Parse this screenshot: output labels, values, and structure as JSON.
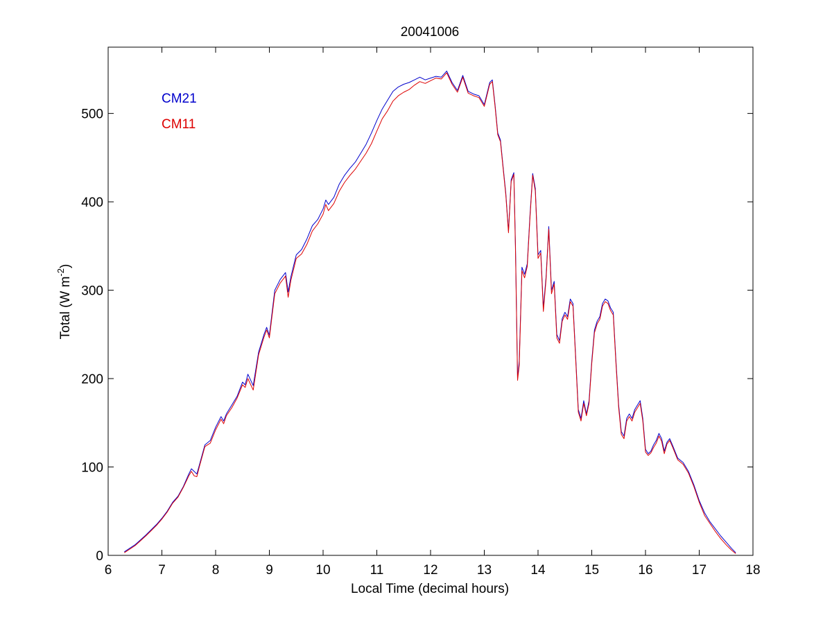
{
  "chart_data": {
    "type": "line",
    "title": "20041006",
    "xlabel": "Local Time (decimal hours)",
    "ylabel": {
      "main": "Total (W m",
      "superscript": "-2",
      "close": ")"
    },
    "xlim": [
      6,
      18
    ],
    "ylim": [
      0,
      575
    ],
    "xticks": [
      6,
      7,
      8,
      9,
      10,
      11,
      12,
      13,
      14,
      15,
      16,
      17,
      18
    ],
    "yticks": [
      0,
      100,
      200,
      300,
      400,
      500
    ],
    "grid": false,
    "legend_position": "top-left",
    "series": [
      {
        "name": "CM21",
        "color": "#0000cc",
        "points": [
          [
            6.3,
            4
          ],
          [
            6.5,
            12
          ],
          [
            6.7,
            23
          ],
          [
            6.9,
            35
          ],
          [
            7.0,
            42
          ],
          [
            7.1,
            50
          ],
          [
            7.2,
            60
          ],
          [
            7.3,
            67
          ],
          [
            7.4,
            78
          ],
          [
            7.5,
            92
          ],
          [
            7.55,
            98
          ],
          [
            7.6,
            95
          ],
          [
            7.65,
            92
          ],
          [
            7.7,
            103
          ],
          [
            7.8,
            125
          ],
          [
            7.9,
            130
          ],
          [
            8.0,
            145
          ],
          [
            8.1,
            157
          ],
          [
            8.15,
            152
          ],
          [
            8.2,
            160
          ],
          [
            8.3,
            170
          ],
          [
            8.4,
            180
          ],
          [
            8.5,
            196
          ],
          [
            8.55,
            193
          ],
          [
            8.6,
            205
          ],
          [
            8.7,
            192
          ],
          [
            8.8,
            230
          ],
          [
            8.9,
            250
          ],
          [
            8.95,
            258
          ],
          [
            9.0,
            249
          ],
          [
            9.1,
            300
          ],
          [
            9.2,
            312
          ],
          [
            9.3,
            320
          ],
          [
            9.35,
            298
          ],
          [
            9.4,
            315
          ],
          [
            9.5,
            340
          ],
          [
            9.6,
            346
          ],
          [
            9.7,
            358
          ],
          [
            9.8,
            373
          ],
          [
            9.9,
            380
          ],
          [
            10.0,
            392
          ],
          [
            10.05,
            402
          ],
          [
            10.1,
            397
          ],
          [
            10.2,
            405
          ],
          [
            10.3,
            420
          ],
          [
            10.4,
            430
          ],
          [
            10.5,
            438
          ],
          [
            10.6,
            445
          ],
          [
            10.7,
            455
          ],
          [
            10.8,
            465
          ],
          [
            10.9,
            478
          ],
          [
            11.0,
            492
          ],
          [
            11.1,
            505
          ],
          [
            11.2,
            515
          ],
          [
            11.3,
            525
          ],
          [
            11.4,
            530
          ],
          [
            11.5,
            533
          ],
          [
            11.6,
            535
          ],
          [
            11.7,
            538
          ],
          [
            11.8,
            541
          ],
          [
            11.9,
            538
          ],
          [
            12.0,
            540
          ],
          [
            12.1,
            542
          ],
          [
            12.2,
            541
          ],
          [
            12.3,
            548
          ],
          [
            12.4,
            535
          ],
          [
            12.5,
            526
          ],
          [
            12.6,
            543
          ],
          [
            12.7,
            525
          ],
          [
            12.8,
            522
          ],
          [
            12.9,
            520
          ],
          [
            13.0,
            510
          ],
          [
            13.1,
            535
          ],
          [
            13.15,
            538
          ],
          [
            13.2,
            510
          ],
          [
            13.25,
            478
          ],
          [
            13.3,
            470
          ],
          [
            13.35,
            440
          ],
          [
            13.4,
            410
          ],
          [
            13.45,
            367
          ],
          [
            13.5,
            425
          ],
          [
            13.55,
            433
          ],
          [
            13.58,
            350
          ],
          [
            13.62,
            200
          ],
          [
            13.65,
            220
          ],
          [
            13.7,
            326
          ],
          [
            13.75,
            318
          ],
          [
            13.8,
            330
          ],
          [
            13.85,
            385
          ],
          [
            13.9,
            432
          ],
          [
            13.95,
            415
          ],
          [
            14.0,
            340
          ],
          [
            14.05,
            345
          ],
          [
            14.1,
            280
          ],
          [
            14.15,
            315
          ],
          [
            14.2,
            372
          ],
          [
            14.25,
            300
          ],
          [
            14.3,
            310
          ],
          [
            14.35,
            250
          ],
          [
            14.4,
            243
          ],
          [
            14.45,
            268
          ],
          [
            14.5,
            275
          ],
          [
            14.55,
            270
          ],
          [
            14.6,
            290
          ],
          [
            14.65,
            285
          ],
          [
            14.7,
            225
          ],
          [
            14.75,
            165
          ],
          [
            14.8,
            155
          ],
          [
            14.85,
            175
          ],
          [
            14.9,
            160
          ],
          [
            14.95,
            175
          ],
          [
            15.0,
            220
          ],
          [
            15.05,
            255
          ],
          [
            15.1,
            265
          ],
          [
            15.15,
            270
          ],
          [
            15.2,
            285
          ],
          [
            15.25,
            290
          ],
          [
            15.3,
            288
          ],
          [
            15.35,
            280
          ],
          [
            15.4,
            275
          ],
          [
            15.45,
            220
          ],
          [
            15.5,
            170
          ],
          [
            15.55,
            140
          ],
          [
            15.6,
            135
          ],
          [
            15.65,
            155
          ],
          [
            15.7,
            160
          ],
          [
            15.75,
            155
          ],
          [
            15.8,
            165
          ],
          [
            15.85,
            170
          ],
          [
            15.9,
            175
          ],
          [
            15.95,
            155
          ],
          [
            16.0,
            120
          ],
          [
            16.05,
            115
          ],
          [
            16.1,
            118
          ],
          [
            16.15,
            125
          ],
          [
            16.2,
            130
          ],
          [
            16.25,
            138
          ],
          [
            16.3,
            132
          ],
          [
            16.35,
            118
          ],
          [
            16.4,
            128
          ],
          [
            16.45,
            132
          ],
          [
            16.5,
            125
          ],
          [
            16.6,
            110
          ],
          [
            16.7,
            105
          ],
          [
            16.8,
            95
          ],
          [
            16.9,
            80
          ],
          [
            17.0,
            62
          ],
          [
            17.1,
            48
          ],
          [
            17.2,
            38
          ],
          [
            17.3,
            30
          ],
          [
            17.4,
            22
          ],
          [
            17.5,
            15
          ],
          [
            17.6,
            8
          ],
          [
            17.68,
            3
          ]
        ]
      },
      {
        "name": "CM11",
        "color": "#dd0000",
        "points": [
          [
            6.3,
            3
          ],
          [
            6.5,
            11
          ],
          [
            6.7,
            22
          ],
          [
            6.9,
            34
          ],
          [
            7.0,
            41
          ],
          [
            7.1,
            49
          ],
          [
            7.2,
            59
          ],
          [
            7.3,
            66
          ],
          [
            7.4,
            77
          ],
          [
            7.5,
            90
          ],
          [
            7.55,
            95
          ],
          [
            7.6,
            90
          ],
          [
            7.65,
            89
          ],
          [
            7.7,
            101
          ],
          [
            7.8,
            123
          ],
          [
            7.9,
            127
          ],
          [
            8.0,
            142
          ],
          [
            8.1,
            154
          ],
          [
            8.15,
            149
          ],
          [
            8.2,
            158
          ],
          [
            8.3,
            167
          ],
          [
            8.4,
            178
          ],
          [
            8.5,
            193
          ],
          [
            8.55,
            190
          ],
          [
            8.6,
            200
          ],
          [
            8.7,
            187
          ],
          [
            8.8,
            227
          ],
          [
            8.9,
            247
          ],
          [
            8.95,
            255
          ],
          [
            9.0,
            246
          ],
          [
            9.1,
            296
          ],
          [
            9.2,
            308
          ],
          [
            9.3,
            316
          ],
          [
            9.35,
            292
          ],
          [
            9.4,
            311
          ],
          [
            9.5,
            336
          ],
          [
            9.6,
            341
          ],
          [
            9.7,
            352
          ],
          [
            9.8,
            367
          ],
          [
            9.9,
            375
          ],
          [
            10.0,
            386
          ],
          [
            10.05,
            397
          ],
          [
            10.1,
            390
          ],
          [
            10.2,
            398
          ],
          [
            10.3,
            412
          ],
          [
            10.4,
            422
          ],
          [
            10.5,
            430
          ],
          [
            10.6,
            437
          ],
          [
            10.7,
            446
          ],
          [
            10.8,
            455
          ],
          [
            10.9,
            466
          ],
          [
            11.0,
            480
          ],
          [
            11.1,
            494
          ],
          [
            11.2,
            503
          ],
          [
            11.3,
            514
          ],
          [
            11.4,
            520
          ],
          [
            11.5,
            524
          ],
          [
            11.6,
            527
          ],
          [
            11.7,
            532
          ],
          [
            11.8,
            536
          ],
          [
            11.9,
            534
          ],
          [
            12.0,
            537
          ],
          [
            12.1,
            540
          ],
          [
            12.2,
            539
          ],
          [
            12.3,
            546
          ],
          [
            12.4,
            533
          ],
          [
            12.5,
            524
          ],
          [
            12.6,
            541
          ],
          [
            12.7,
            523
          ],
          [
            12.8,
            520
          ],
          [
            12.9,
            518
          ],
          [
            13.0,
            508
          ],
          [
            13.1,
            533
          ],
          [
            13.15,
            536
          ],
          [
            13.2,
            508
          ],
          [
            13.25,
            476
          ],
          [
            13.3,
            468
          ],
          [
            13.35,
            438
          ],
          [
            13.4,
            408
          ],
          [
            13.45,
            365
          ],
          [
            13.5,
            423
          ],
          [
            13.55,
            431
          ],
          [
            13.58,
            345
          ],
          [
            13.62,
            198
          ],
          [
            13.65,
            215
          ],
          [
            13.7,
            322
          ],
          [
            13.75,
            314
          ],
          [
            13.8,
            327
          ],
          [
            13.85,
            382
          ],
          [
            13.9,
            430
          ],
          [
            13.95,
            412
          ],
          [
            14.0,
            336
          ],
          [
            14.05,
            342
          ],
          [
            14.1,
            276
          ],
          [
            14.15,
            312
          ],
          [
            14.2,
            369
          ],
          [
            14.25,
            296
          ],
          [
            14.3,
            307
          ],
          [
            14.35,
            246
          ],
          [
            14.4,
            240
          ],
          [
            14.45,
            265
          ],
          [
            14.5,
            272
          ],
          [
            14.55,
            267
          ],
          [
            14.6,
            287
          ],
          [
            14.65,
            282
          ],
          [
            14.7,
            222
          ],
          [
            14.75,
            162
          ],
          [
            14.8,
            152
          ],
          [
            14.85,
            172
          ],
          [
            14.9,
            158
          ],
          [
            14.95,
            172
          ],
          [
            15.0,
            217
          ],
          [
            15.05,
            252
          ],
          [
            15.1,
            262
          ],
          [
            15.15,
            267
          ],
          [
            15.2,
            282
          ],
          [
            15.25,
            287
          ],
          [
            15.3,
            285
          ],
          [
            15.35,
            277
          ],
          [
            15.4,
            272
          ],
          [
            15.45,
            217
          ],
          [
            15.5,
            167
          ],
          [
            15.55,
            137
          ],
          [
            15.6,
            132
          ],
          [
            15.65,
            152
          ],
          [
            15.7,
            157
          ],
          [
            15.75,
            152
          ],
          [
            15.8,
            162
          ],
          [
            15.85,
            167
          ],
          [
            15.9,
            172
          ],
          [
            15.95,
            152
          ],
          [
            16.0,
            117
          ],
          [
            16.05,
            113
          ],
          [
            16.1,
            116
          ],
          [
            16.15,
            122
          ],
          [
            16.2,
            127
          ],
          [
            16.25,
            135
          ],
          [
            16.3,
            129
          ],
          [
            16.35,
            115
          ],
          [
            16.4,
            126
          ],
          [
            16.45,
            130
          ],
          [
            16.5,
            123
          ],
          [
            16.6,
            108
          ],
          [
            16.7,
            103
          ],
          [
            16.8,
            93
          ],
          [
            16.9,
            78
          ],
          [
            17.0,
            60
          ],
          [
            17.1,
            45
          ],
          [
            17.2,
            36
          ],
          [
            17.3,
            27
          ],
          [
            17.4,
            19
          ],
          [
            17.5,
            12
          ],
          [
            17.6,
            6
          ],
          [
            17.68,
            2
          ]
        ]
      }
    ]
  }
}
